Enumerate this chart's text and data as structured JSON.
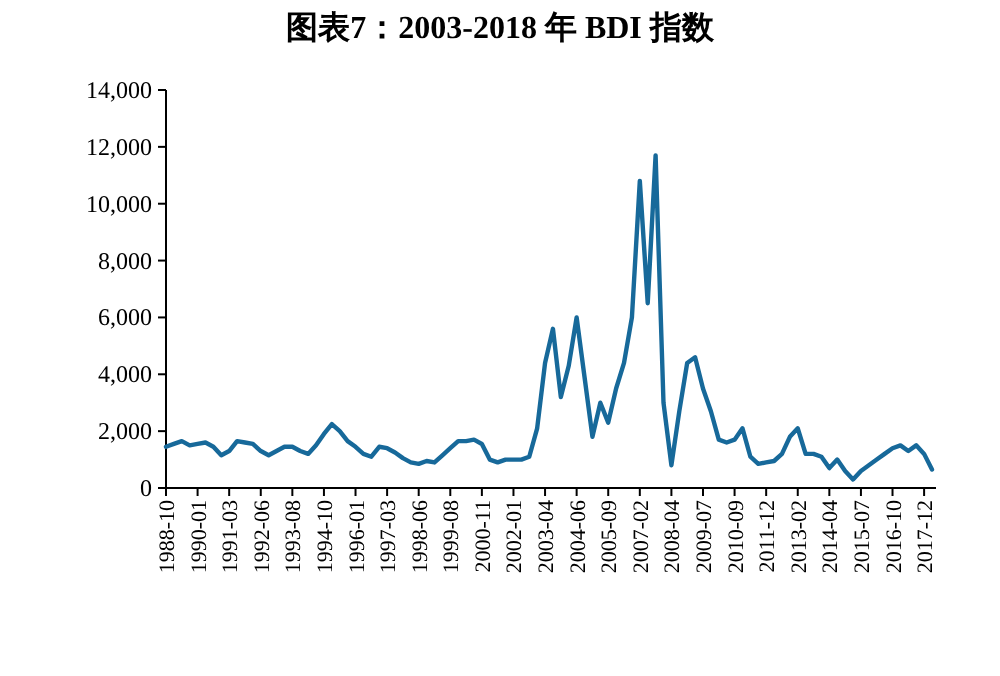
{
  "chart_data": {
    "type": "line",
    "title": "图表7：2003-2018 年 BDI 指数",
    "categories": [
      "1988-10",
      null,
      null,
      null,
      "1990-01",
      null,
      null,
      null,
      "1991-03",
      null,
      null,
      null,
      "1992-06",
      null,
      null,
      null,
      "1993-08",
      null,
      null,
      null,
      "1994-10",
      null,
      null,
      null,
      "1996-01",
      null,
      null,
      null,
      "1997-03",
      null,
      null,
      null,
      "1998-06",
      null,
      null,
      null,
      "1999-08",
      null,
      null,
      null,
      "2000-11",
      null,
      null,
      null,
      "2002-01",
      null,
      null,
      null,
      "2003-04",
      null,
      null,
      null,
      "2004-06",
      null,
      null,
      null,
      "2005-09",
      null,
      null,
      null,
      "2007-02",
      null,
      null,
      null,
      "2008-04",
      null,
      null,
      null,
      "2009-07",
      null,
      null,
      null,
      "2010-09",
      null,
      null,
      null,
      "2011-12",
      null,
      null,
      null,
      "2013-02",
      null,
      null,
      null,
      "2014-04",
      null,
      null,
      null,
      "2015-07",
      null,
      null,
      null,
      "2016-10",
      null,
      null,
      null,
      "2017-12",
      null
    ],
    "series": [
      {
        "color": "#17699a",
        "values": [
          1450,
          1550,
          1650,
          1500,
          1550,
          1600,
          1450,
          1150,
          1300,
          1650,
          1600,
          1550,
          1300,
          1150,
          1300,
          1450,
          1450,
          1300,
          1200,
          1500,
          1900,
          2250,
          2000,
          1650,
          1450,
          1200,
          1100,
          1450,
          1400,
          1250,
          1050,
          900,
          850,
          950,
          900,
          1150,
          1400,
          1650,
          1650,
          1700,
          1550,
          1000,
          900,
          1000,
          1000,
          1000,
          1100,
          2100,
          4400,
          5600,
          3200,
          4300,
          6000,
          3900,
          1800,
          3000,
          2300,
          3500,
          4400,
          6000,
          10800,
          6500,
          11700,
          3000,
          800,
          2700,
          4400,
          4600,
          3500,
          2700,
          1700,
          1600,
          1700,
          2100,
          1100,
          850,
          900,
          950,
          1200,
          1800,
          2100,
          1200,
          1200,
          1100,
          700,
          1000,
          600,
          300,
          600,
          800,
          1000,
          1200,
          1400,
          1500,
          1300,
          1500,
          1200,
          650
        ]
      }
    ],
    "ylim": [
      0,
      14000
    ],
    "yticks": [
      0,
      {
        "value": 2000,
        "label": "2,000"
      },
      {
        "value": 4000,
        "label": "4,000"
      },
      {
        "value": 6000,
        "label": "6,000"
      },
      {
        "value": 8000,
        "label": "8,000"
      },
      {
        "value": 10000,
        "label": "10,000"
      },
      {
        "value": 12000,
        "label": "12,000"
      },
      {
        "value": 14000,
        "label": "14,000"
      }
    ],
    "grid": false,
    "marker": "none",
    "line_style": "solid"
  }
}
